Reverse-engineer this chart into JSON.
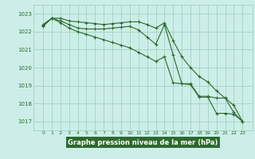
{
  "line1": [
    1022.3,
    1022.75,
    1022.75,
    1022.6,
    1022.55,
    1022.5,
    1022.45,
    1022.4,
    1022.45,
    1022.5,
    1022.55,
    1022.55,
    1022.4,
    1022.2,
    1022.5,
    1021.5,
    1020.6,
    1020.0,
    1019.5,
    1019.2,
    1018.7,
    1018.3,
    1017.9,
    1017.0
  ],
  "line2": [
    1022.4,
    1022.75,
    1022.6,
    1022.4,
    1022.2,
    1022.15,
    1022.15,
    1022.15,
    1022.2,
    1022.25,
    1022.3,
    1022.1,
    1021.7,
    1021.3,
    1022.4,
    1020.7,
    1019.1,
    1019.1,
    1018.4,
    1018.4,
    1018.3,
    1018.3,
    1017.5,
    1017.0
  ],
  "line3": [
    1022.35,
    1022.75,
    1022.5,
    1022.2,
    1022.0,
    1021.85,
    1021.7,
    1021.55,
    1021.4,
    1021.25,
    1021.1,
    1020.85,
    1020.6,
    1020.35,
    1020.6,
    1019.15,
    1019.1,
    1019.05,
    1018.35,
    1018.35,
    1017.45,
    1017.45,
    1017.4,
    1017.0
  ],
  "x": [
    0,
    1,
    2,
    3,
    4,
    5,
    6,
    7,
    8,
    9,
    10,
    11,
    12,
    13,
    14,
    15,
    16,
    17,
    18,
    19,
    20,
    21,
    22,
    23
  ],
  "line_color": "#2d6a2d",
  "bg_color": "#cceee8",
  "grid_color": "#99ccbb",
  "xlabel": "Graphe pression niveau de la mer (hPa)",
  "xlabel_bg": "#2d6a2d",
  "xlabel_fg": "#ffffff",
  "ylim": [
    1016.5,
    1023.5
  ],
  "yticks": [
    1017,
    1018,
    1019,
    1020,
    1021,
    1022,
    1023
  ],
  "xticks": [
    0,
    1,
    2,
    3,
    4,
    5,
    6,
    7,
    8,
    9,
    10,
    11,
    12,
    13,
    14,
    15,
    16,
    17,
    18,
    19,
    20,
    21,
    22,
    23
  ]
}
